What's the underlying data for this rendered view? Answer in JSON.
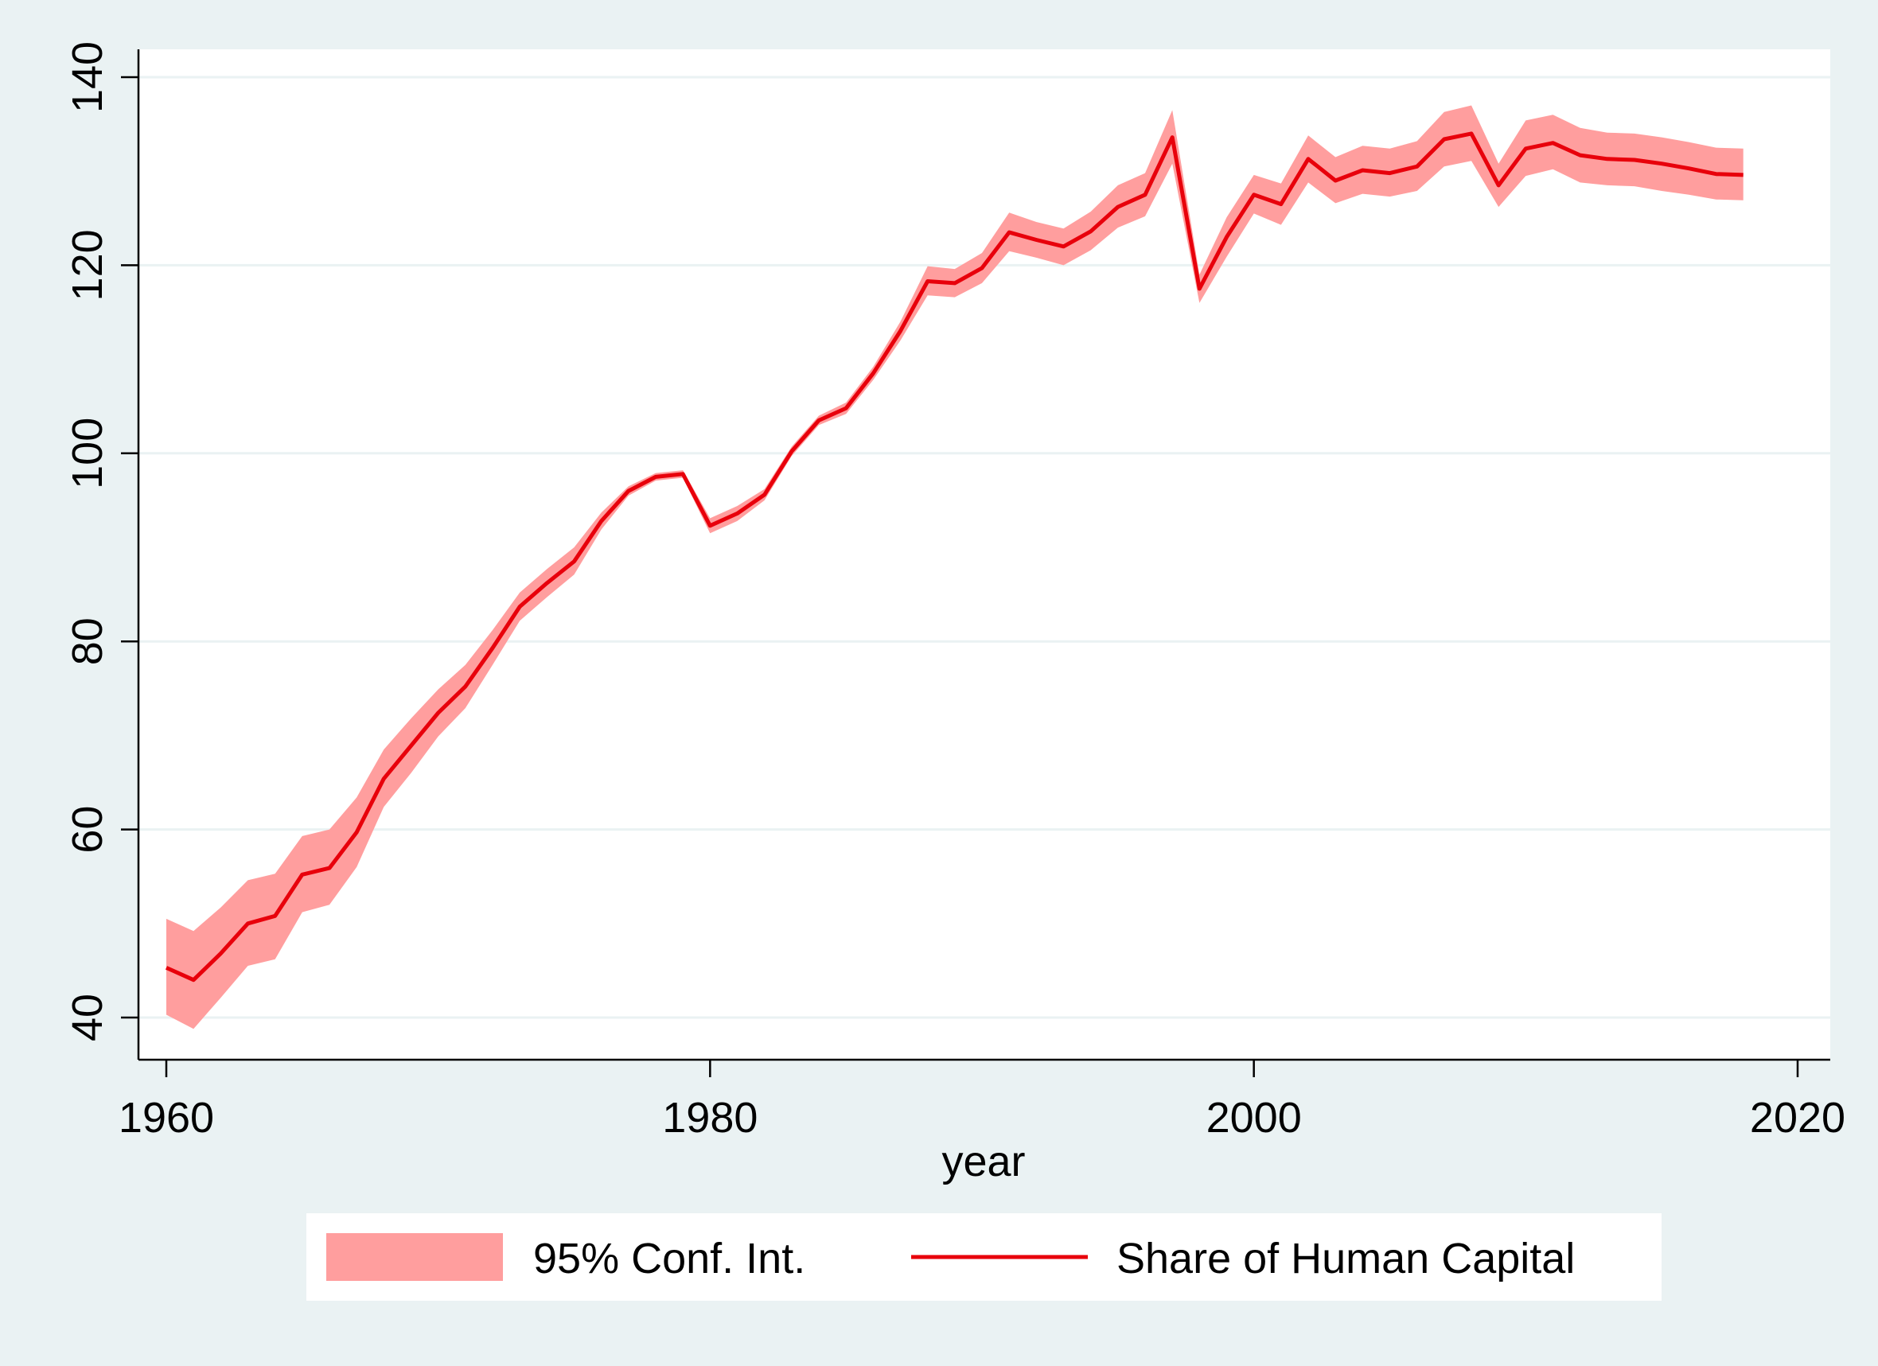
{
  "chart_data": {
    "type": "line",
    "title": "",
    "xlabel": "year",
    "ylabel": "",
    "xlim": [
      1960,
      2020
    ],
    "ylim": [
      40,
      140
    ],
    "x_ticks": [
      1960,
      1980,
      2000,
      2020
    ],
    "y_ticks": [
      40,
      60,
      80,
      100,
      120,
      140
    ],
    "grid": true,
    "legend_position": "bottom",
    "colors": {
      "line": "#e8000b",
      "band": "#ff9e9e",
      "background": "#eaf2f3",
      "plot_bg": "#ffffff",
      "grid": "#eaf2f3"
    },
    "x": [
      1960,
      1961,
      1962,
      1963,
      1964,
      1965,
      1966,
      1967,
      1968,
      1969,
      1970,
      1971,
      1972,
      1973,
      1974,
      1975,
      1976,
      1977,
      1978,
      1979,
      1980,
      1981,
      1982,
      1983,
      1984,
      1985,
      1986,
      1987,
      1988,
      1989,
      1990,
      1991,
      1992,
      1993,
      1994,
      1995,
      1996,
      1997,
      1998,
      1999,
      2000,
      2001,
      2002,
      2003,
      2004,
      2005,
      2006,
      2007,
      2008,
      2009,
      2010,
      2011,
      2012,
      2013,
      2014,
      2015,
      2016,
      2017,
      2018
    ],
    "series": [
      {
        "name": "Share of Human Capital",
        "values": [
          45.3,
          44.0,
          46.8,
          50.0,
          50.8,
          55.2,
          55.9,
          59.7,
          65.4,
          68.9,
          72.4,
          75.2,
          79.3,
          83.7,
          86.2,
          88.5,
          92.8,
          96.0,
          97.5,
          97.8,
          92.3,
          93.6,
          95.6,
          100.2,
          103.5,
          104.8,
          108.5,
          113.0,
          118.3,
          118.1,
          119.7,
          123.5,
          122.7,
          122.0,
          123.6,
          126.2,
          127.5,
          133.6,
          117.5,
          123.0,
          127.5,
          126.5,
          131.3,
          129.0,
          130.1,
          129.8,
          130.5,
          133.4,
          134.0,
          128.5,
          132.4,
          133.0,
          131.7,
          131.3,
          131.2,
          130.8,
          130.3,
          129.7,
          129.6
        ]
      },
      {
        "name": "95% Conf. Int.",
        "lower": [
          40.3,
          38.8,
          42.1,
          45.5,
          46.2,
          51.2,
          52.0,
          56.0,
          62.4,
          66.0,
          69.9,
          72.9,
          77.5,
          82.2,
          84.7,
          87.1,
          91.9,
          95.5,
          97.1,
          97.4,
          91.5,
          92.8,
          95.0,
          99.7,
          103.0,
          104.2,
          107.8,
          112.0,
          116.8,
          116.6,
          118.1,
          121.5,
          120.8,
          120.0,
          121.6,
          124.0,
          125.2,
          130.8,
          116.0,
          120.9,
          125.5,
          124.3,
          128.8,
          126.6,
          127.6,
          127.3,
          127.9,
          130.5,
          131.1,
          126.2,
          129.5,
          130.2,
          128.8,
          128.5,
          128.4,
          127.9,
          127.5,
          127.0,
          126.9
        ],
        "upper": [
          50.5,
          49.2,
          51.7,
          54.6,
          55.3,
          59.3,
          60.0,
          63.4,
          68.5,
          71.8,
          74.9,
          77.5,
          81.2,
          85.2,
          87.7,
          90.0,
          93.7,
          96.5,
          97.9,
          98.2,
          93.1,
          94.4,
          96.2,
          100.7,
          104.0,
          105.4,
          109.2,
          114.0,
          119.9,
          119.6,
          121.3,
          125.6,
          124.6,
          123.9,
          125.7,
          128.5,
          129.8,
          136.5,
          119.0,
          125.1,
          129.6,
          128.7,
          133.8,
          131.5,
          132.7,
          132.4,
          133.2,
          136.3,
          137.0,
          130.8,
          135.4,
          136.0,
          134.6,
          134.1,
          134.0,
          133.6,
          133.1,
          132.5,
          132.4
        ]
      }
    ],
    "legend": [
      {
        "label": "95% Conf. Int.",
        "kind": "band"
      },
      {
        "label": "Share of Human Capital",
        "kind": "line"
      }
    ]
  }
}
